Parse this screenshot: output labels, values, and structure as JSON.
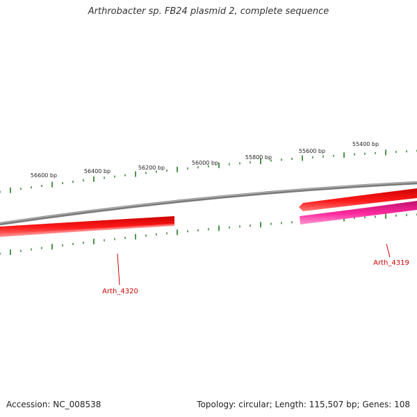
{
  "title": "Arthrobacter sp. FB24 plasmid 2, complete sequence",
  "footer": {
    "accession": "Accession: NC_008538",
    "summary": "Topology: circular; Length: 115,507 bp; Genes: 108"
  },
  "colors": {
    "backbone": "#808080",
    "tick": "#1f7a1f",
    "gene_forward": "#ee0000",
    "gene_forward_light": "#ff6a6a",
    "gene_reverse": "#e0208a",
    "gene_reverse_light": "#ff8cc8",
    "label": "#cc0000"
  },
  "tick_labels": [
    "56600 bp",
    "56400 bp",
    "56200 bp",
    "56000 bp",
    "55800 bp",
    "55600 bp",
    "55400 bp"
  ],
  "genes": [
    {
      "name": "Arth_4320",
      "strand": "forward"
    },
    {
      "name": "Arth_4319",
      "strand": "reverse"
    }
  ]
}
